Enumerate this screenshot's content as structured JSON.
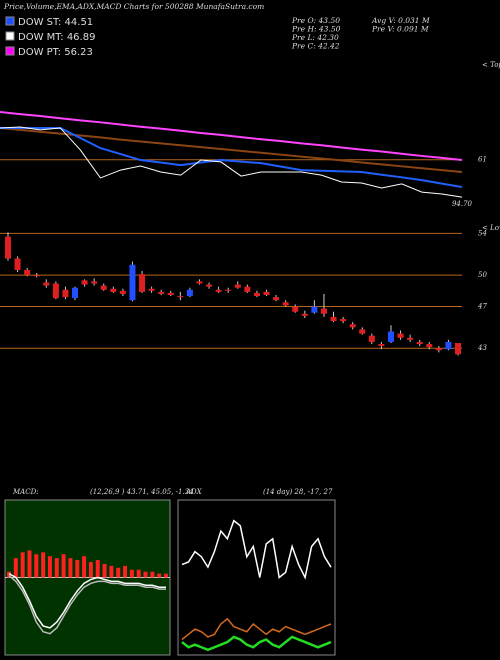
{
  "header": {
    "title": "Price,Volume,EMA,ADX,MACD Charts for 500288 MunafaSutra.com",
    "legend": [
      {
        "label": "DOW ST: 44.51",
        "color": "#2050ff"
      },
      {
        "label": "DOW MT: 46.89",
        "color": "#ffffff"
      },
      {
        "label": "DOW PT: 56.23",
        "color": "#ff00ff"
      }
    ],
    "info": [
      "Pre  O: 43.50",
      "Pre  H: 43.50",
      "Pre  L: 42.30",
      "Pre  C: 42.42",
      "Avg  V: 0.031 M",
      "Pre  V: 0.091 M"
    ]
  },
  "chart_data": [
    {
      "type": "line",
      "corner_label": "< Topa",
      "annotation": "94.70",
      "ylim": [
        45,
        80
      ],
      "yticks": [
        61
      ],
      "grid": true,
      "grid_color": "#b5651d",
      "series": [
        {
          "name": null,
          "color": "#ff44ff",
          "values": [
            76.2,
            75.5,
            74.9,
            74.2,
            73.5,
            72.9,
            72.2,
            71.5,
            70.9,
            70.2,
            69.5,
            68.9,
            68.2,
            67.5,
            66.9,
            66.2,
            65.6,
            64.9,
            64.2,
            63.6,
            62.9,
            62.2,
            61.6,
            60.9
          ]
        },
        {
          "name": null,
          "color": "#8b4513",
          "values": [
            71.1,
            70.5,
            69.9,
            69.3,
            68.7,
            68.1,
            67.4,
            66.8,
            66.2,
            65.6,
            65.0,
            64.4,
            63.8,
            63.2,
            62.6,
            62.0,
            61.4,
            60.8,
            60.1,
            59.5,
            58.9,
            58.3,
            57.7,
            57.1
          ]
        },
        {
          "name": null,
          "color": "#2060ff",
          "values": [
            71.1,
            71.1,
            71.1,
            71.1,
            67.9,
            64.7,
            62.8,
            60.9,
            60.1,
            59.3,
            60.1,
            60.9,
            60.4,
            59.9,
            58.8,
            57.7,
            57.5,
            57.3,
            57.1,
            56.2,
            55.4,
            54.5,
            53.4,
            52.3
          ]
        },
        {
          "name": null,
          "color": "#ffffff",
          "values": [
            71.1,
            71.4,
            70.5,
            71.1,
            64.1,
            55.2,
            57.7,
            59.0,
            57.1,
            56.1,
            60.9,
            60.3,
            55.8,
            57.1,
            57.1,
            57.1,
            56.1,
            53.9,
            53.6,
            52.0,
            53.3,
            50.7,
            50.1,
            49.1
          ]
        }
      ]
    },
    {
      "type": "candlestick",
      "corner_label": "< Lowes",
      "ylim": [
        32,
        55
      ],
      "yticks": [
        54,
        50,
        47,
        43
      ],
      "grid": true,
      "grid_color": "#b5651d",
      "up_color": "#2050ff",
      "down_color": "#e02020",
      "open": [
        53.7,
        51.6,
        50.5,
        50.0,
        49.3,
        49.2,
        48.6,
        47.8,
        49.5,
        49.4,
        49.0,
        48.7,
        48.5,
        47.6,
        50.1,
        48.7,
        48.4,
        48.3,
        48.0,
        48.0,
        49.4,
        49.1,
        48.6,
        48.6,
        49.1,
        48.9,
        48.3,
        48.4,
        47.9,
        47.4,
        47.0,
        46.3,
        46.4,
        46.8,
        46.0,
        45.8,
        45.3,
        44.8,
        44.2,
        43.4,
        43.6,
        44.4,
        44.0,
        43.6,
        43.4,
        43.0,
        42.9,
        43.5
      ],
      "high": [
        54.1,
        51.8,
        50.7,
        50.2,
        49.6,
        49.4,
        48.9,
        48.9,
        49.6,
        49.7,
        49.2,
        48.9,
        48.7,
        51.3,
        50.4,
        48.9,
        48.6,
        48.5,
        48.4,
        48.8,
        49.6,
        49.3,
        48.9,
        48.8,
        49.4,
        49.1,
        48.5,
        48.6,
        48.1,
        47.6,
        47.2,
        46.6,
        47.6,
        48.2,
        46.5,
        46.0,
        45.5,
        45.0,
        44.4,
        43.6,
        45.2,
        44.7,
        44.3,
        43.8,
        43.6,
        43.2,
        43.8,
        43.5
      ],
      "low": [
        51.4,
        50.3,
        49.9,
        49.8,
        48.8,
        47.7,
        47.7,
        47.6,
        48.9,
        49.0,
        48.5,
        48.3,
        48.0,
        47.5,
        48.3,
        48.3,
        48.1,
        48.0,
        47.6,
        47.9,
        49.1,
        48.7,
        48.3,
        48.3,
        48.7,
        48.3,
        47.9,
        48.0,
        47.5,
        47.0,
        46.4,
        45.9,
        46.3,
        46.0,
        45.5,
        45.4,
        44.8,
        44.3,
        43.4,
        42.9,
        43.5,
        43.8,
        43.6,
        43.2,
        42.9,
        42.6,
        42.8,
        42.3
      ],
      "close": [
        51.6,
        50.5,
        50.0,
        49.9,
        49.0,
        47.8,
        47.9,
        48.8,
        49.1,
        49.2,
        48.6,
        48.4,
        48.2,
        51.0,
        48.4,
        48.5,
        48.2,
        48.1,
        47.9,
        48.6,
        49.2,
        48.9,
        48.4,
        48.5,
        48.8,
        48.4,
        48.0,
        48.1,
        47.6,
        47.1,
        46.5,
        46.1,
        47.0,
        46.3,
        45.6,
        45.6,
        45.0,
        44.4,
        43.6,
        43.2,
        44.6,
        44.0,
        43.8,
        43.4,
        43.1,
        42.8,
        43.6,
        42.42
      ]
    },
    {
      "type": "macd",
      "title": "MACD:",
      "subtitle": "(12,26,9 ) 43.71, 45.05, -1.34",
      "ylim": [
        -4,
        4
      ],
      "background": "#003300",
      "histogram": {
        "color": "#ff2020",
        "values": [
          0.3,
          1.0,
          1.3,
          1.4,
          1.2,
          1.3,
          1.1,
          1.0,
          1.2,
          1.0,
          0.9,
          1.1,
          0.8,
          0.9,
          0.7,
          0.6,
          0.5,
          0.6,
          0.4,
          0.4,
          0.3,
          0.3,
          0.2,
          0.2
        ]
      },
      "series": [
        {
          "name": null,
          "color": "#ffffff",
          "values": [
            0.2,
            0.0,
            -0.5,
            -1.2,
            -2.0,
            -2.5,
            -2.6,
            -2.3,
            -1.8,
            -1.2,
            -0.7,
            -0.3,
            -0.1,
            0.0,
            -0.1,
            -0.2,
            -0.2,
            -0.3,
            -0.3,
            -0.3,
            -0.4,
            -0.4,
            -0.5,
            -0.5
          ]
        },
        {
          "name": null,
          "color": "#bbbbbb",
          "values": [
            0.1,
            -0.2,
            -0.7,
            -1.4,
            -2.3,
            -2.8,
            -2.9,
            -2.6,
            -2.0,
            -1.4,
            -0.9,
            -0.5,
            -0.3,
            -0.2,
            -0.2,
            -0.3,
            -0.3,
            -0.4,
            -0.4,
            -0.4,
            -0.5,
            -0.5,
            -0.6,
            -0.6
          ]
        }
      ]
    },
    {
      "type": "adx",
      "title": "ADX",
      "subtitle": "(14 day) 28, -17, 27",
      "ylim": [
        0,
        60
      ],
      "background": "#000000",
      "series": [
        {
          "name": null,
          "color": "#ffffff",
          "values": [
            35,
            36,
            40,
            38,
            34,
            40,
            48,
            45,
            52,
            50,
            38,
            42,
            30,
            43,
            45,
            30,
            32,
            42,
            35,
            30,
            42,
            45,
            38,
            34
          ]
        },
        {
          "name": null,
          "color": "#d2691e",
          "values": [
            6,
            8,
            10,
            9,
            7,
            8,
            12,
            14,
            11,
            10,
            9,
            12,
            10,
            8,
            10,
            9,
            11,
            10,
            9,
            8,
            9,
            10,
            11,
            12
          ]
        },
        {
          "name": null,
          "color": "#22dd22",
          "values": [
            5,
            3,
            4,
            3,
            2,
            3,
            4,
            5,
            7,
            6,
            4,
            3,
            5,
            6,
            4,
            3,
            5,
            7,
            6,
            5,
            4,
            3,
            4,
            5
          ]
        }
      ]
    }
  ]
}
